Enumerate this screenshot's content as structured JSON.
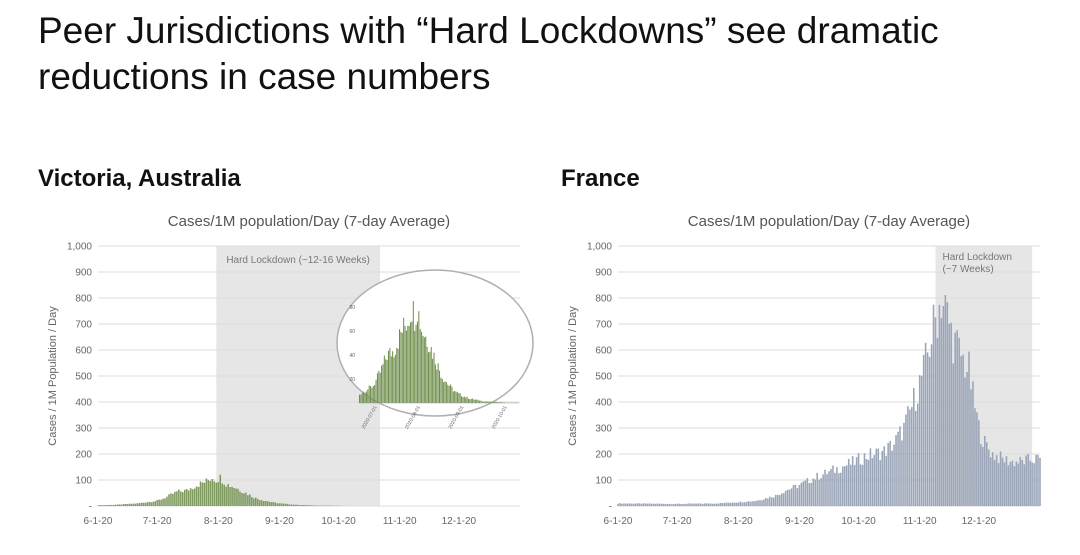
{
  "slide": {
    "title_line1": "Peer Jurisdictions with “Hard Lockdowns” see dramatic",
    "title_line2": "reductions in case numbers"
  },
  "chart_data": [
    {
      "id": "victoria",
      "type": "bar",
      "panel_heading": "Victoria, Australia",
      "title": "Cases/1M population/Day (7-day Average)",
      "ylabel": "Cases / 1M Population / Day",
      "ylim": [
        0,
        1000
      ],
      "yticks": [
        0,
        100,
        200,
        300,
        400,
        500,
        600,
        700,
        800,
        900,
        1000
      ],
      "ytick_labels": [
        "-",
        "100",
        "200",
        "300",
        "400",
        "500",
        "600",
        "700",
        "800",
        "900",
        "1,000"
      ],
      "xlim_days": [
        0,
        214
      ],
      "xticks": [
        {
          "day": 0,
          "label": "6-1-20"
        },
        {
          "day": 30,
          "label": "7-1-20"
        },
        {
          "day": 61,
          "label": "8-1-20"
        },
        {
          "day": 92,
          "label": "9-1-20"
        },
        {
          "day": 122,
          "label": "10-1-20"
        },
        {
          "day": 153,
          "label": "11-1-20"
        },
        {
          "day": 183,
          "label": "12-1-20"
        }
      ],
      "grid": true,
      "bar_color": "#7e9a5e",
      "shade_color": "#e6e6e6",
      "annotation": {
        "label": "Hard Lockdown (~12-16 Weeks)",
        "start_day": 60,
        "end_day": 143
      },
      "series_anchors": [
        [
          0,
          3
        ],
        [
          10,
          5
        ],
        [
          20,
          10
        ],
        [
          30,
          20
        ],
        [
          35,
          35
        ],
        [
          40,
          55
        ],
        [
          45,
          60
        ],
        [
          50,
          80
        ],
        [
          55,
          95
        ],
        [
          58,
          110
        ],
        [
          60,
          100
        ],
        [
          62,
          110
        ],
        [
          65,
          85
        ],
        [
          70,
          70
        ],
        [
          75,
          50
        ],
        [
          80,
          30
        ],
        [
          85,
          20
        ],
        [
          90,
          12
        ],
        [
          95,
          8
        ],
        [
          100,
          5
        ],
        [
          110,
          2
        ],
        [
          130,
          0
        ],
        [
          214,
          0
        ]
      ],
      "inset": {
        "yticks": [
          20,
          40,
          60,
          80
        ],
        "xtick_labels": [
          "2020-07-01",
          "2020-08-01",
          "2020-09-01",
          "2020-10-01"
        ],
        "bar_color": "#6f8f4c"
      }
    },
    {
      "id": "france",
      "type": "bar",
      "panel_heading": "France",
      "title": "Cases/1M population/Day (7-day Average)",
      "ylabel": "Cases / 1M Population / Day",
      "ylim": [
        0,
        1000
      ],
      "yticks": [
        0,
        100,
        200,
        300,
        400,
        500,
        600,
        700,
        800,
        900,
        1000
      ],
      "ytick_labels": [
        "-",
        "100",
        "200",
        "300",
        "400",
        "500",
        "600",
        "700",
        "800",
        "900",
        "1,000"
      ],
      "xlim_days": [
        0,
        214
      ],
      "xticks": [
        {
          "day": 0,
          "label": "6-1-20"
        },
        {
          "day": 30,
          "label": "7-1-20"
        },
        {
          "day": 61,
          "label": "8-1-20"
        },
        {
          "day": 92,
          "label": "9-1-20"
        },
        {
          "day": 122,
          "label": "10-1-20"
        },
        {
          "day": 153,
          "label": "11-1-20"
        },
        {
          "day": 183,
          "label": "12-1-20"
        }
      ],
      "grid": true,
      "bar_color": "#9aa5b8",
      "shade_color": "#e6e6e6",
      "annotation": {
        "label_line1": "Hard Lockdown",
        "label_line2": "(~7 Weeks)",
        "start_day": 161,
        "end_day": 210
      },
      "series_anchors": [
        [
          0,
          10
        ],
        [
          30,
          8
        ],
        [
          50,
          10
        ],
        [
          61,
          15
        ],
        [
          70,
          20
        ],
        [
          80,
          40
        ],
        [
          85,
          60
        ],
        [
          92,
          80
        ],
        [
          100,
          110
        ],
        [
          110,
          140
        ],
        [
          120,
          170
        ],
        [
          125,
          190
        ],
        [
          130,
          200
        ],
        [
          135,
          210
        ],
        [
          140,
          240
        ],
        [
          145,
          300
        ],
        [
          148,
          360
        ],
        [
          152,
          450
        ],
        [
          155,
          520
        ],
        [
          158,
          620
        ],
        [
          160,
          690
        ],
        [
          162,
          740
        ],
        [
          164,
          800
        ],
        [
          166,
          760
        ],
        [
          168,
          700
        ],
        [
          170,
          640
        ],
        [
          172,
          610
        ],
        [
          175,
          560
        ],
        [
          178,
          520
        ],
        [
          180,
          420
        ],
        [
          183,
          300
        ],
        [
          186,
          240
        ],
        [
          190,
          200
        ],
        [
          195,
          180
        ],
        [
          200,
          170
        ],
        [
          205,
          170
        ],
        [
          210,
          180
        ],
        [
          214,
          180
        ]
      ]
    }
  ]
}
